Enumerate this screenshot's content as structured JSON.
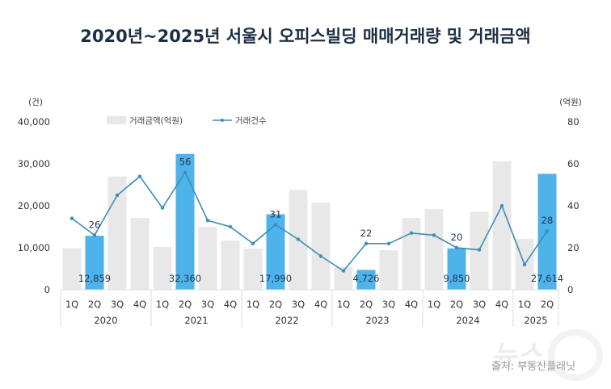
{
  "chart_data": {
    "type": "bar+line",
    "title": "2020년~2025년 서울시 오피스빌딩 매매거래량 및 거래금액",
    "left_axis": {
      "unit_label": "(건)",
      "range": [
        0,
        40000
      ],
      "ticks": [
        "0",
        "10,000",
        "20,000",
        "30,000",
        "40,000"
      ]
    },
    "right_axis": {
      "unit_label": "(억원)",
      "range": [
        0,
        80
      ],
      "ticks": [
        "0",
        "20",
        "40",
        "60",
        "80"
      ]
    },
    "years": [
      "2020",
      "2021",
      "2022",
      "2023",
      "2024",
      "2025"
    ],
    "categories": [
      {
        "q": "1Q",
        "year": "2020"
      },
      {
        "q": "2Q",
        "year": "2020"
      },
      {
        "q": "3Q",
        "year": "2020"
      },
      {
        "q": "4Q",
        "year": "2020"
      },
      {
        "q": "1Q",
        "year": "2021"
      },
      {
        "q": "2Q",
        "year": "2021"
      },
      {
        "q": "3Q",
        "year": "2021"
      },
      {
        "q": "4Q",
        "year": "2021"
      },
      {
        "q": "1Q",
        "year": "2022"
      },
      {
        "q": "2Q",
        "year": "2022"
      },
      {
        "q": "3Q",
        "year": "2022"
      },
      {
        "q": "4Q",
        "year": "2022"
      },
      {
        "q": "1Q",
        "year": "2023"
      },
      {
        "q": "2Q",
        "year": "2023"
      },
      {
        "q": "3Q",
        "year": "2023"
      },
      {
        "q": "4Q",
        "year": "2023"
      },
      {
        "q": "1Q",
        "year": "2024"
      },
      {
        "q": "2Q",
        "year": "2024"
      },
      {
        "q": "3Q",
        "year": "2024"
      },
      {
        "q": "4Q",
        "year": "2024"
      },
      {
        "q": "1Q",
        "year": "2025"
      },
      {
        "q": "2Q",
        "year": "2025"
      }
    ],
    "series": [
      {
        "name": "거래금액(억원)",
        "kind": "bar",
        "axis": "left",
        "color": "#e8e8e8",
        "highlight_color": "#4db3ea",
        "values": [
          9900,
          12859,
          27000,
          17100,
          10200,
          32360,
          15000,
          11700,
          9800,
          17990,
          23800,
          20800,
          5400,
          4726,
          9400,
          17100,
          19200,
          9850,
          18600,
          30600,
          12100,
          27614
        ],
        "highlighted": [
          false,
          true,
          false,
          false,
          false,
          true,
          false,
          false,
          false,
          true,
          false,
          false,
          false,
          true,
          false,
          false,
          false,
          true,
          false,
          false,
          false,
          true
        ],
        "labels": [
          "",
          "12,859",
          "",
          "",
          "",
          "32,360",
          "",
          "",
          "",
          "17,990",
          "",
          "",
          "",
          "4,726",
          "",
          "",
          "",
          "9,850",
          "",
          "",
          "",
          "27,614"
        ]
      },
      {
        "name": "거래건수",
        "kind": "line",
        "axis": "right",
        "color": "#3a8fb5",
        "values": [
          34,
          26,
          45,
          54,
          39,
          56,
          33,
          30,
          22,
          31,
          24,
          16,
          9,
          22,
          22,
          27,
          26,
          20,
          19,
          40,
          12,
          28
        ],
        "labels": [
          "",
          "26",
          "",
          "",
          "",
          "56",
          "",
          "",
          "",
          "31",
          "",
          "",
          "",
          "22",
          "",
          "",
          "",
          "20",
          "",
          "",
          "",
          "28"
        ]
      }
    ],
    "legend_placement": "top-center",
    "grid": false
  },
  "source": "출처: 부동산플래닛",
  "watermark": "뉴스1"
}
